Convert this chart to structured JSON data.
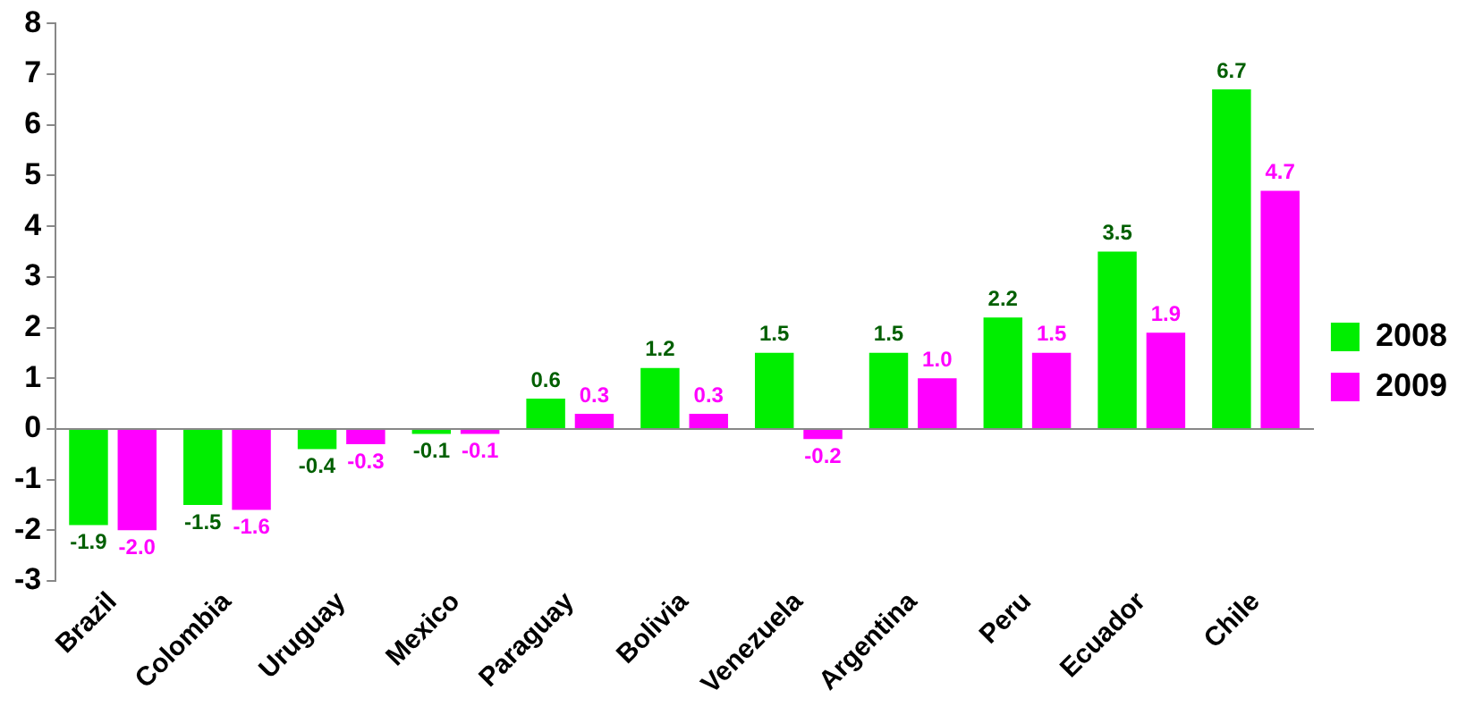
{
  "chart_data": {
    "type": "bar",
    "categories": [
      "Brazil",
      "Colombia",
      "Uruguay",
      "Mexico",
      "Paraguay",
      "Bolivia",
      "Venezuela",
      "Argentina",
      "Peru",
      "Ecuador",
      "Chile"
    ],
    "series": [
      {
        "name": "2008",
        "color": "#00ee00",
        "values": [
          -1.9,
          -1.5,
          -0.4,
          -0.1,
          0.6,
          1.2,
          1.5,
          1.5,
          2.2,
          3.5,
          6.7
        ],
        "value_labels": [
          "-1.9",
          "-1.5",
          "-0.4",
          "-0.1",
          "0.6",
          "1.2",
          "1.5",
          "1.5",
          "2.2",
          "3.5",
          "6.7"
        ]
      },
      {
        "name": "2009",
        "color": "#ff00ff",
        "values": [
          -2.0,
          -1.6,
          -0.3,
          -0.1,
          0.3,
          0.3,
          -0.2,
          1.0,
          1.5,
          1.9,
          4.7
        ],
        "value_labels": [
          "-2.0",
          "-1.6",
          "-0.3",
          "-0.1",
          "0.3",
          "0.3",
          "-0.2",
          "1.0",
          "1.5",
          "1.9",
          "4.7"
        ]
      }
    ],
    "ylim": [
      -3,
      8
    ],
    "yticks": [
      -3,
      -2,
      -1,
      0,
      1,
      2,
      3,
      4,
      5,
      6,
      7,
      8
    ],
    "legend": "right"
  }
}
